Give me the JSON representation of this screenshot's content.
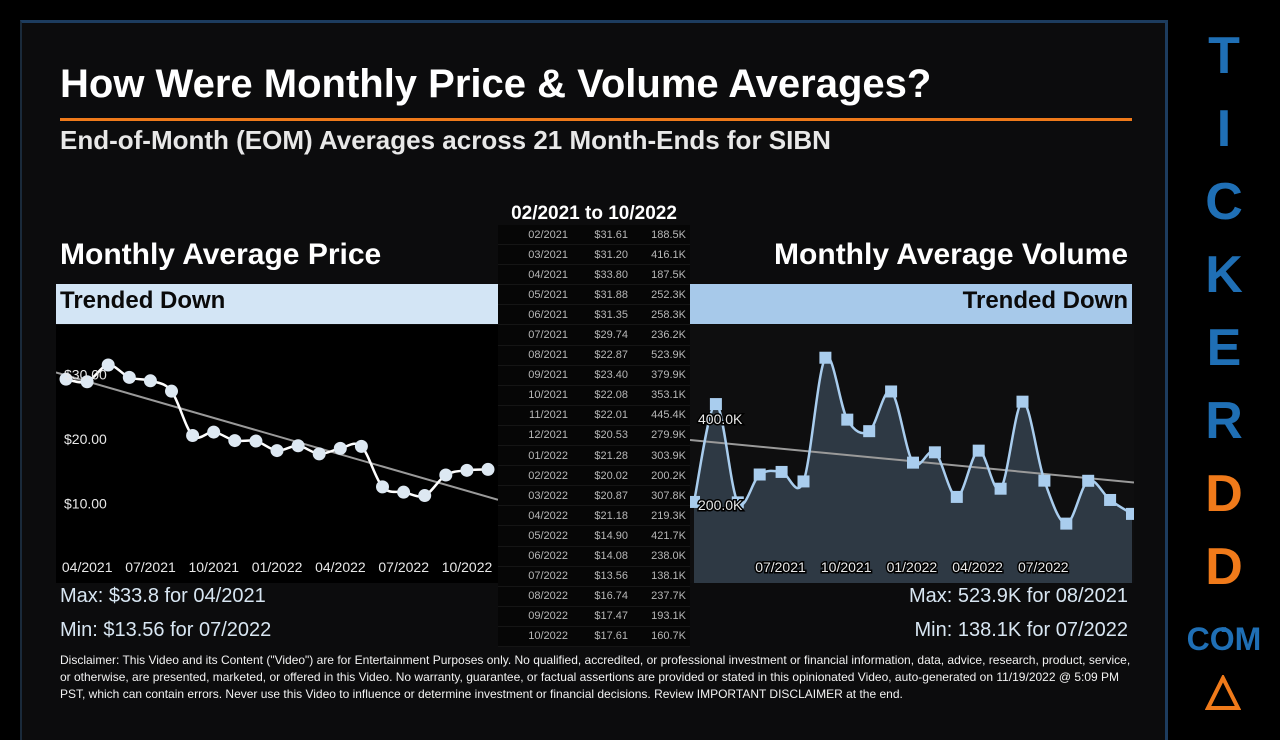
{
  "title": "How Were Monthly Price & Volume Averages?",
  "subtitle": "End-of-Month (EOM) Averages across 21 Month-Ends for SIBN",
  "table_title": "02/2021 to 10/2022",
  "price_panel": {
    "heading": "Monthly Average Price",
    "trend": "Trended Down",
    "max": "Max: $33.8 for 04/2021",
    "min": "Min: $13.56 for 07/2022"
  },
  "volume_panel": {
    "heading": "Monthly Average Volume",
    "trend": "Trended Down",
    "max": "Max: 523.9K for 08/2021",
    "min": "Min: 138.1K for 07/2022"
  },
  "table_rows": [
    [
      "02/2021",
      "$31.61",
      "188.5K"
    ],
    [
      "03/2021",
      "$31.20",
      "416.1K"
    ],
    [
      "04/2021",
      "$33.80",
      "187.5K"
    ],
    [
      "05/2021",
      "$31.88",
      "252.3K"
    ],
    [
      "06/2021",
      "$31.35",
      "258.3K"
    ],
    [
      "07/2021",
      "$29.74",
      "236.2K"
    ],
    [
      "08/2021",
      "$22.87",
      "523.9K"
    ],
    [
      "09/2021",
      "$23.40",
      "379.9K"
    ],
    [
      "10/2021",
      "$22.08",
      "353.1K"
    ],
    [
      "11/2021",
      "$22.01",
      "445.4K"
    ],
    [
      "12/2021",
      "$20.53",
      "279.9K"
    ],
    [
      "01/2022",
      "$21.28",
      "303.9K"
    ],
    [
      "02/2022",
      "$20.02",
      "200.2K"
    ],
    [
      "03/2022",
      "$20.87",
      "307.8K"
    ],
    [
      "04/2022",
      "$21.18",
      "219.3K"
    ],
    [
      "05/2022",
      "$14.90",
      "421.7K"
    ],
    [
      "06/2022",
      "$14.08",
      "238.0K"
    ],
    [
      "07/2022",
      "$13.56",
      "138.1K"
    ],
    [
      "08/2022",
      "$16.74",
      "237.7K"
    ],
    [
      "09/2022",
      "$17.47",
      "193.1K"
    ],
    [
      "10/2022",
      "$17.61",
      "160.7K"
    ]
  ],
  "chart_data": [
    {
      "type": "line",
      "x": [
        "02/2021",
        "03/2021",
        "04/2021",
        "05/2021",
        "06/2021",
        "07/2021",
        "08/2021",
        "09/2021",
        "10/2021",
        "11/2021",
        "12/2021",
        "01/2022",
        "02/2022",
        "03/2022",
        "04/2022",
        "05/2022",
        "06/2022",
        "07/2022",
        "08/2022",
        "09/2022",
        "10/2022"
      ],
      "values": [
        31.61,
        31.2,
        33.8,
        31.88,
        31.35,
        29.74,
        22.87,
        23.4,
        22.08,
        22.01,
        20.53,
        21.28,
        20.02,
        20.87,
        21.18,
        14.9,
        14.08,
        13.56,
        16.74,
        17.47,
        17.61
      ],
      "ylim": [
        0,
        40
      ],
      "yticks": [
        "$10.00",
        "$20.00",
        "$30.00"
      ],
      "ytick_values": [
        10,
        20,
        30
      ],
      "xticks": [
        "04/2021",
        "07/2021",
        "10/2021",
        "01/2022",
        "04/2022",
        "07/2022",
        "10/2022"
      ],
      "trendline": true,
      "grid": false,
      "line_color": "#ffffff",
      "marker_color": "#dde8f2"
    },
    {
      "type": "area",
      "x": [
        "02/2021",
        "03/2021",
        "04/2021",
        "05/2021",
        "06/2021",
        "07/2021",
        "08/2021",
        "09/2021",
        "10/2021",
        "11/2021",
        "12/2021",
        "01/2022",
        "02/2022",
        "03/2022",
        "04/2022",
        "05/2022",
        "06/2022",
        "07/2022",
        "08/2022",
        "09/2022",
        "10/2022"
      ],
      "values": [
        188.5,
        416.1,
        187.5,
        252.3,
        258.3,
        236.2,
        523.9,
        379.9,
        353.1,
        445.4,
        279.9,
        303.9,
        200.2,
        307.8,
        219.3,
        421.7,
        238.0,
        138.1,
        237.7,
        193.1,
        160.7
      ],
      "unit": "K",
      "ylim": [
        0,
        600
      ],
      "yticks": [
        "200.0K",
        "400.0K"
      ],
      "ytick_values": [
        200,
        400
      ],
      "xticks": [
        "07/2021",
        "10/2021",
        "01/2022",
        "04/2022",
        "07/2022"
      ],
      "trendline": true,
      "grid": false,
      "line_color": "#a9cdee",
      "fill_color": "#2e3944"
    }
  ],
  "logo": {
    "letters": [
      "T",
      "I",
      "C",
      "K",
      "E",
      "R",
      "D",
      "D"
    ],
    "suffix": ".COM",
    "blue": "#1f6fb5",
    "orange": "#f07a1a"
  },
  "disclaimer": "Disclaimer: This Video and its Content (\"Video\") are for Entertainment Purposes only. No qualified, accredited, or professional investment or financial information, data, advice, research, product, service, or otherwise, are presented, marketed, or offered in this Video. No warranty, guarantee, or factual assertions are provided or stated in this opinionated Video, auto-generated on 11/19/2022 @ 5:09 PM PST, which can contain errors. Never use this Video to influence or determine investment or financial decisions. Review IMPORTANT DISCLAIMER at the end."
}
